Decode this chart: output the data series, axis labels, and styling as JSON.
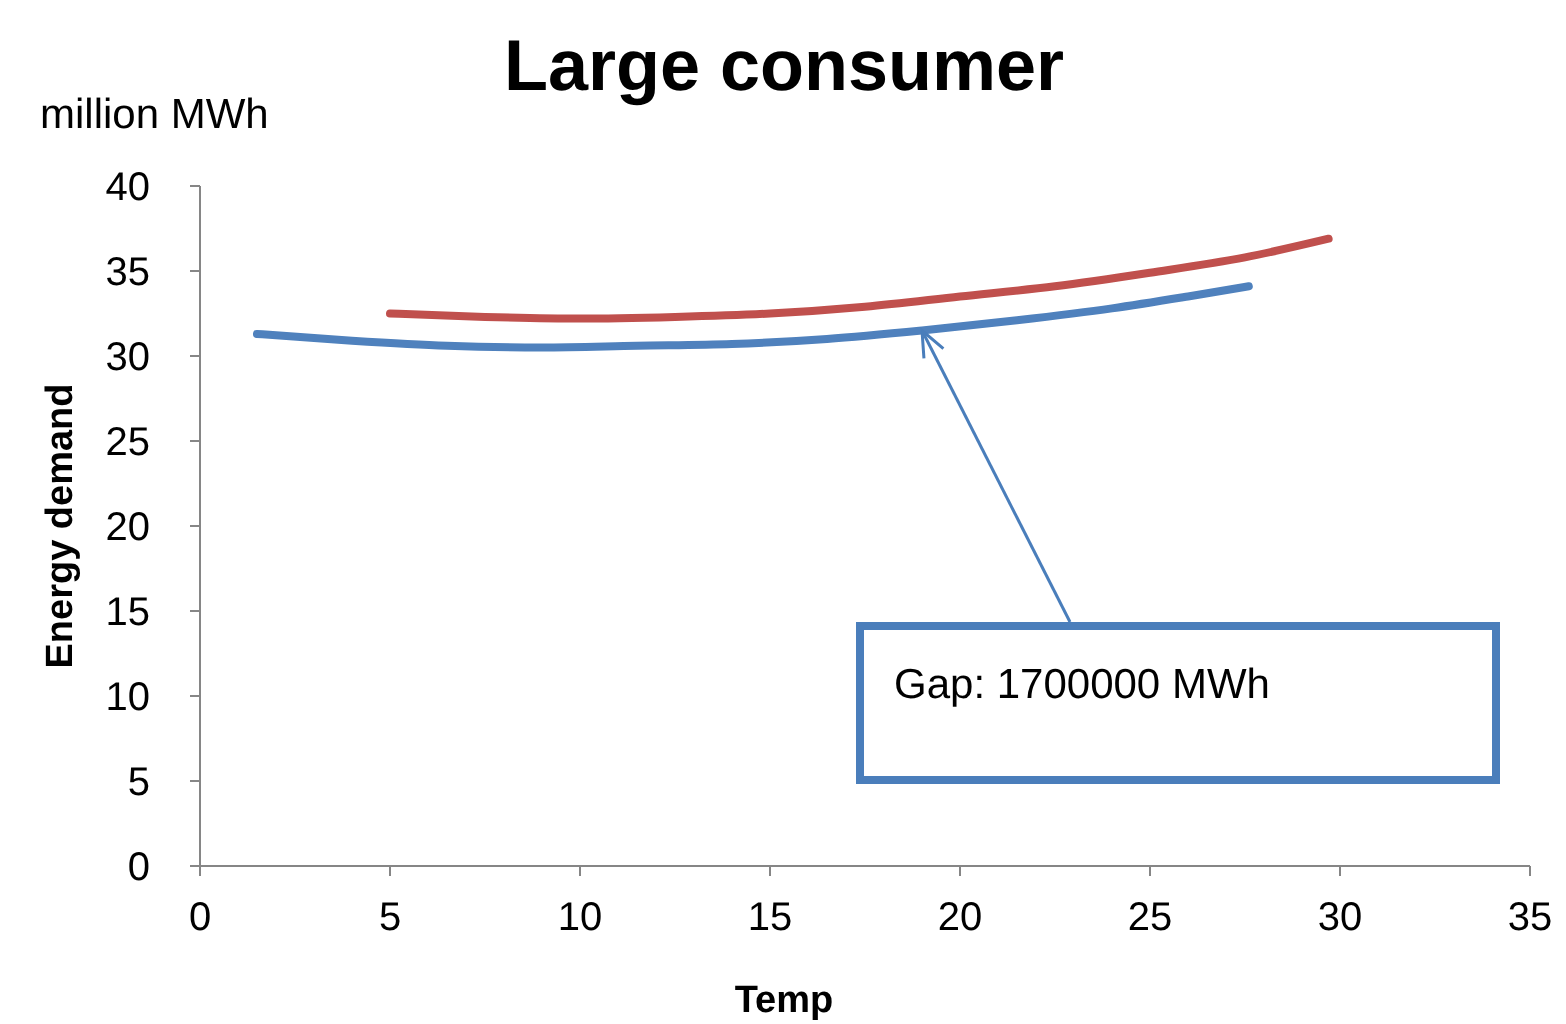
{
  "chart_data": {
    "type": "line",
    "title": "Large consumer",
    "xlabel": "Temp",
    "ylabel": "Energy demand",
    "annotations": [
      "million MWh",
      {
        "text": "Gap: 1700000 MWh",
        "x": 19,
        "y": 31.5
      }
    ],
    "xlim": [
      0,
      35
    ],
    "xticks": [
      0,
      5,
      10,
      15,
      20,
      25,
      30,
      35
    ],
    "ylim": [
      0,
      40
    ],
    "yticks": [
      0,
      5,
      10,
      15,
      20,
      25,
      30,
      35,
      40
    ],
    "grid": false,
    "marker": "none",
    "line_style": "solid",
    "series": [
      {
        "color": "#c0504d",
        "x": [
          5,
          7.5,
          10,
          12.5,
          15,
          17.5,
          20,
          22.5,
          25,
          27.5,
          29.7
        ],
        "values": [
          32.5,
          32.3,
          32.2,
          32.3,
          32.5,
          32.9,
          33.5,
          34.1,
          34.9,
          35.8,
          36.9
        ]
      },
      {
        "color": "#4f81bd",
        "x": [
          1.5,
          4,
          6.5,
          9,
          11.5,
          14,
          16.5,
          19,
          21.5,
          24,
          26,
          27.6
        ],
        "values": [
          31.3,
          30.9,
          30.6,
          30.5,
          30.6,
          30.7,
          31,
          31.5,
          32.1,
          32.8,
          33.5,
          34.1
        ]
      }
    ]
  }
}
